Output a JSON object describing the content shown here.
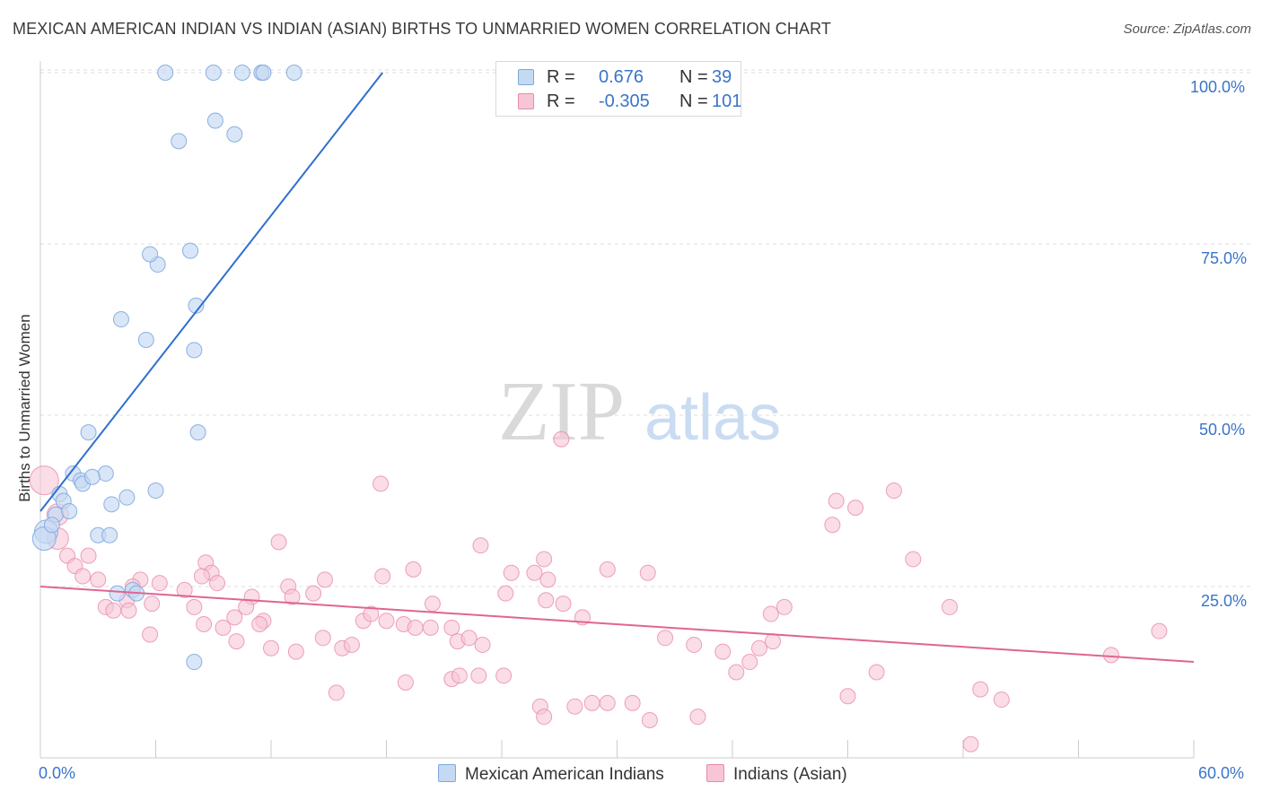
{
  "title": "MEXICAN AMERICAN INDIAN VS INDIAN (ASIAN) BIRTHS TO UNMARRIED WOMEN CORRELATION CHART",
  "source": "Source: ZipAtlas.com",
  "watermark": {
    "zip": "ZIP",
    "atlas": "atlas"
  },
  "colors": {
    "blue_fill": "#c5d9f3",
    "blue_stroke": "#7fa8de",
    "blue_line": "#2f6fcf",
    "pink_fill": "#f7c6d6",
    "pink_stroke": "#e88aab",
    "pink_line": "#e06592",
    "axis_text": "#3a74c9",
    "grid": "#dddddd"
  },
  "legend_top": {
    "row1": {
      "r_label": "R =",
      "r_value": " 0.676",
      "n_label": "N =",
      "n_value": " 39"
    },
    "row2": {
      "r_label": "R =",
      "r_value": "-0.305",
      "n_label": "N =",
      "n_value": "101"
    }
  },
  "legend_bottom": {
    "series1": "Mexican American Indians",
    "series2": "Indians (Asian)"
  },
  "chart_data": {
    "type": "scatter",
    "title": "MEXICAN AMERICAN INDIAN VS INDIAN (ASIAN) BIRTHS TO UNMARRIED WOMEN CORRELATION CHART",
    "xlabel": "",
    "ylabel": "Births to Unmarried Women",
    "xlim": [
      0,
      60
    ],
    "ylim": [
      0,
      105
    ],
    "x_tick_labels": [
      "0.0%",
      "60.0%"
    ],
    "y_tick_labels": [
      "25.0%",
      "50.0%",
      "75.0%",
      "100.0%"
    ],
    "y_ticks": [
      25,
      50,
      75,
      100
    ],
    "grid": true,
    "legend_position": "top-center",
    "series": [
      {
        "name": "Mexican American Indians",
        "r": 0.676,
        "n": 39,
        "trend": {
          "x": [
            0,
            17.8
          ],
          "y": [
            36,
            100
          ]
        },
        "points": [
          [
            6.5,
            100
          ],
          [
            9,
            100
          ],
          [
            10.5,
            100
          ],
          [
            11.5,
            100
          ],
          [
            11.6,
            100
          ],
          [
            13.2,
            100
          ],
          [
            9.1,
            93
          ],
          [
            7.2,
            90
          ],
          [
            10.1,
            91
          ],
          [
            7.8,
            74
          ],
          [
            6.1,
            72
          ],
          [
            5.7,
            73.5
          ],
          [
            8.1,
            66
          ],
          [
            4.2,
            64
          ],
          [
            5.5,
            61
          ],
          [
            8,
            59.5
          ],
          [
            2.5,
            47.5
          ],
          [
            8.2,
            47.5
          ],
          [
            1.7,
            41.5
          ],
          [
            3.4,
            41.5
          ],
          [
            2.1,
            40.5
          ],
          [
            2.2,
            40
          ],
          [
            2.7,
            41
          ],
          [
            6,
            39
          ],
          [
            4.5,
            38
          ],
          [
            1,
            38.5
          ],
          [
            1.2,
            37.5
          ],
          [
            3.7,
            37
          ],
          [
            0.8,
            35.5
          ],
          [
            0.3,
            33
          ],
          [
            0.2,
            32
          ],
          [
            3,
            32.5
          ],
          [
            3.6,
            32.5
          ],
          [
            4,
            24
          ],
          [
            4.8,
            24.5
          ],
          [
            5,
            24
          ],
          [
            8,
            14
          ],
          [
            0.6,
            34
          ],
          [
            1.5,
            36
          ]
        ]
      },
      {
        "name": "Indians (Asian)",
        "r": -0.305,
        "n": 101,
        "trend": {
          "x": [
            0,
            60
          ],
          "y": [
            25,
            14
          ]
        },
        "points": [
          [
            0.2,
            40.5
          ],
          [
            0.9,
            35.5
          ],
          [
            0.9,
            32
          ],
          [
            1.4,
            29.5
          ],
          [
            2.5,
            29.5
          ],
          [
            1.8,
            28
          ],
          [
            2.2,
            26.5
          ],
          [
            3,
            26
          ],
          [
            12.4,
            31.5
          ],
          [
            17.7,
            40
          ],
          [
            27.1,
            46.5
          ],
          [
            22.9,
            31
          ],
          [
            24.5,
            27
          ],
          [
            26.2,
            29
          ],
          [
            26.4,
            26
          ],
          [
            29.5,
            27.5
          ],
          [
            19.4,
            27.5
          ],
          [
            17.8,
            26.5
          ],
          [
            14.2,
            24
          ],
          [
            14.8,
            26
          ],
          [
            12.9,
            25
          ],
          [
            13.1,
            23.5
          ],
          [
            11,
            23.5
          ],
          [
            10.7,
            22
          ],
          [
            8.6,
            28.5
          ],
          [
            8.9,
            27
          ],
          [
            8.4,
            26.5
          ],
          [
            5.2,
            26
          ],
          [
            4.8,
            25
          ],
          [
            4.5,
            23
          ],
          [
            6.2,
            25.5
          ],
          [
            7.5,
            24.5
          ],
          [
            3.4,
            22
          ],
          [
            3.8,
            21.5
          ],
          [
            4.6,
            21.5
          ],
          [
            5.8,
            22.5
          ],
          [
            8,
            22
          ],
          [
            9.2,
            25.5
          ],
          [
            10.1,
            20.5
          ],
          [
            9.5,
            19
          ],
          [
            5.7,
            18
          ],
          [
            8.5,
            19.5
          ],
          [
            11.6,
            20
          ],
          [
            12,
            16
          ],
          [
            10.2,
            17
          ],
          [
            11.4,
            19.5
          ],
          [
            13.3,
            15.5
          ],
          [
            14.7,
            17.5
          ],
          [
            15.7,
            16
          ],
          [
            16.2,
            16.5
          ],
          [
            16.8,
            20
          ],
          [
            17.2,
            21
          ],
          [
            18,
            20
          ],
          [
            18.9,
            19.5
          ],
          [
            19.5,
            19
          ],
          [
            20.4,
            22.5
          ],
          [
            20.3,
            19
          ],
          [
            21.4,
            19
          ],
          [
            21.7,
            17
          ],
          [
            22.3,
            17.5
          ],
          [
            23,
            16.5
          ],
          [
            24.2,
            24
          ],
          [
            25.7,
            27
          ],
          [
            26.3,
            23
          ],
          [
            27.2,
            22.5
          ],
          [
            28.2,
            20.5
          ],
          [
            31.6,
            27
          ],
          [
            32.5,
            17.5
          ],
          [
            34,
            16.5
          ],
          [
            35.5,
            15.5
          ],
          [
            36.2,
            12.5
          ],
          [
            36.9,
            14
          ],
          [
            37.4,
            16
          ],
          [
            38.1,
            17
          ],
          [
            38.7,
            22
          ],
          [
            38,
            21
          ],
          [
            41.2,
            34
          ],
          [
            41.4,
            37.5
          ],
          [
            42.4,
            36.5
          ],
          [
            44.4,
            39
          ],
          [
            45.4,
            29
          ],
          [
            43.5,
            12.5
          ],
          [
            47.3,
            22
          ],
          [
            50,
            8.5
          ],
          [
            48.9,
            10
          ],
          [
            42,
            9
          ],
          [
            30.8,
            8
          ],
          [
            27.8,
            7.5
          ],
          [
            26,
            7.5
          ],
          [
            26.2,
            6
          ],
          [
            31.7,
            5.5
          ],
          [
            34.2,
            6
          ],
          [
            29.5,
            8
          ],
          [
            24.1,
            12
          ],
          [
            22.8,
            12
          ],
          [
            21.4,
            11.5
          ],
          [
            21.8,
            12
          ],
          [
            15.4,
            9.5
          ],
          [
            19,
            11
          ],
          [
            28.7,
            8
          ],
          [
            55.7,
            15
          ],
          [
            58.2,
            18.5
          ],
          [
            48.4,
            2
          ]
        ]
      }
    ]
  }
}
